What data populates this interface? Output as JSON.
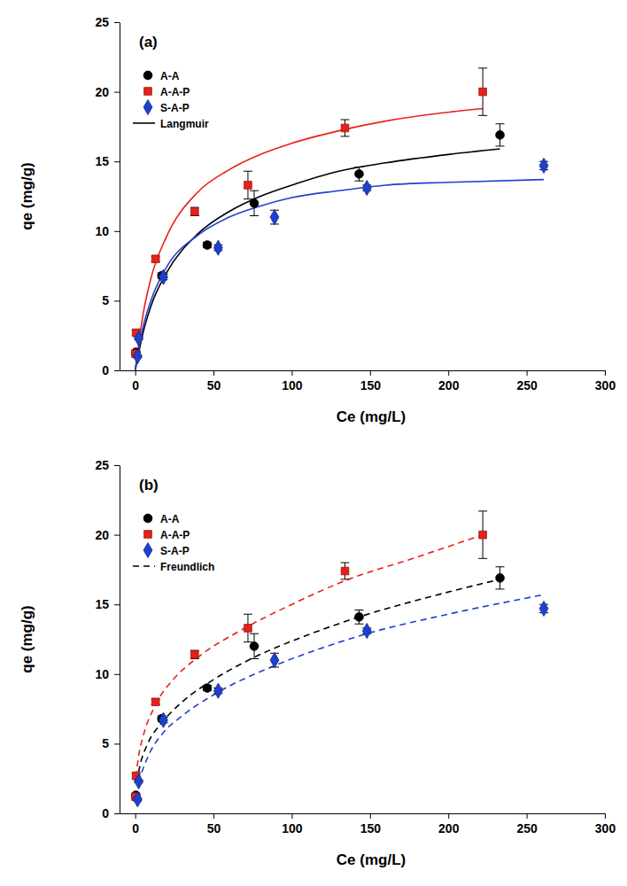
{
  "chart_data": [
    {
      "type": "scatter",
      "title": "(a)",
      "x_label": "Ce (mg/L)",
      "y_label": "qe (mg/g)",
      "xlim": [
        -10,
        300
      ],
      "ylim": [
        0,
        25
      ],
      "xticks": [
        0,
        50,
        100,
        150,
        200,
        250,
        300
      ],
      "yticks": [
        0,
        5,
        10,
        15,
        20,
        25
      ],
      "legend": "upper left",
      "series": [
        {
          "name": "A-A",
          "color": "#000000",
          "marker": "circle",
          "x": [
            0.4,
            17,
            46,
            76,
            143,
            233
          ],
          "values": [
            1.3,
            6.8,
            9.0,
            12.0,
            14.1,
            16.9
          ],
          "error": [
            0.1,
            0.2,
            0.2,
            0.9,
            0.5,
            0.8
          ]
        },
        {
          "name": "A-A-P",
          "color": "#e8201a",
          "marker": "square",
          "x": [
            0.2,
            0.6,
            13,
            38,
            72,
            134,
            222
          ],
          "values": [
            1.2,
            2.7,
            8.0,
            11.4,
            13.3,
            17.4,
            20.0
          ],
          "error": [
            0.1,
            0.2,
            0.2,
            0.3,
            1.0,
            0.6,
            1.7
          ]
        },
        {
          "name": "S-A-P",
          "color": "#1f3fd0",
          "marker": "diamond",
          "x": [
            1.5,
            2.2,
            18,
            53,
            89,
            148,
            261
          ],
          "values": [
            1.0,
            2.3,
            6.7,
            8.8,
            11.0,
            13.1,
            14.7
          ],
          "error": [
            0.1,
            0.1,
            0.2,
            0.2,
            0.5,
            0.2,
            0.3
          ]
        }
      ],
      "fit": {
        "name": "Langmuir",
        "color": "#000000",
        "line_style": "solid",
        "curves": [
          {
            "color": "#000000",
            "x": [
              0,
              5,
              10,
              20,
              40,
              60,
              80,
              100,
              130,
              160,
              200,
              233
            ],
            "values": [
              0,
              2.7,
              4.6,
              7.0,
              9.8,
              11.4,
              12.5,
              13.3,
              14.3,
              14.9,
              15.5,
              15.9
            ]
          },
          {
            "color": "#e8201a",
            "x": [
              0,
              5,
              10,
              20,
              40,
              60,
              80,
              100,
              130,
              160,
              190,
              222
            ],
            "values": [
              0,
              4.0,
              6.6,
              9.6,
              12.8,
              14.4,
              15.5,
              16.3,
              17.2,
              17.9,
              18.4,
              18.8
            ]
          },
          {
            "color": "#1f3fd0",
            "x": [
              0,
              5,
              10,
              20,
              40,
              60,
              80,
              100,
              130,
              160,
              200,
              261
            ],
            "values": [
              0,
              3.1,
              5.0,
              7.4,
              9.7,
              11.0,
              11.8,
              12.4,
              12.9,
              13.3,
              13.5,
              13.7
            ]
          }
        ]
      }
    },
    {
      "type": "scatter",
      "title": "(b)",
      "x_label": "Ce (mg/L)",
      "y_label": "qe (mg/g)",
      "xlim": [
        -10,
        300
      ],
      "ylim": [
        0,
        25
      ],
      "xticks": [
        0,
        50,
        100,
        150,
        200,
        250,
        300
      ],
      "yticks": [
        0,
        5,
        10,
        15,
        20,
        25
      ],
      "legend": "upper left",
      "series": [
        {
          "name": "A-A",
          "color": "#000000",
          "marker": "circle",
          "x": [
            0.4,
            17,
            46,
            76,
            143,
            233
          ],
          "values": [
            1.3,
            6.8,
            9.0,
            12.0,
            14.1,
            16.9
          ],
          "error": [
            0.1,
            0.2,
            0.2,
            0.9,
            0.5,
            0.8
          ]
        },
        {
          "name": "A-A-P",
          "color": "#e8201a",
          "marker": "square",
          "x": [
            0.2,
            0.6,
            13,
            38,
            72,
            134,
            222
          ],
          "values": [
            1.2,
            2.7,
            8.0,
            11.4,
            13.3,
            17.4,
            20.0
          ],
          "error": [
            0.1,
            0.2,
            0.2,
            0.3,
            1.0,
            0.6,
            1.7
          ]
        },
        {
          "name": "S-A-P",
          "color": "#1f3fd0",
          "marker": "diamond",
          "x": [
            1.5,
            2.2,
            18,
            53,
            89,
            148,
            261
          ],
          "values": [
            1.0,
            2.3,
            6.7,
            8.8,
            11.0,
            13.1,
            14.7
          ],
          "error": [
            0.1,
            0.1,
            0.2,
            0.2,
            0.5,
            0.2,
            0.3
          ]
        }
      ],
      "fit": {
        "name": "Freundlich",
        "color": "#000000",
        "line_style": "dashed",
        "curves": [
          {
            "color": "#000000",
            "x": [
              1,
              3,
              8,
              17,
              30,
              50,
              76,
              110,
              143,
              190,
              233
            ],
            "values": [
              2.2,
              3.4,
              5.0,
              6.5,
              8.0,
              9.6,
              11.2,
              12.8,
              14.1,
              15.6,
              16.8
            ]
          },
          {
            "color": "#e8201a",
            "x": [
              0.5,
              2,
              5,
              13,
              25,
              40,
              70,
              100,
              134,
              180,
              222
            ],
            "values": [
              2.6,
              4.0,
              5.5,
              7.8,
              9.7,
              11.2,
              13.3,
              15.0,
              16.7,
              18.4,
              20.0
            ]
          },
          {
            "color": "#1f3fd0",
            "x": [
              2,
              5,
              10,
              18,
              30,
              53,
              89,
              120,
              148,
              200,
              261
            ],
            "values": [
              2.2,
              3.2,
              4.5,
              5.8,
              7.0,
              8.7,
              10.6,
              11.9,
              12.9,
              14.3,
              15.7
            ]
          }
        ]
      }
    }
  ]
}
